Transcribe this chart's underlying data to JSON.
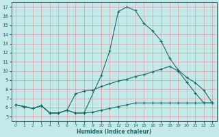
{
  "xlabel": "Humidex (Indice chaleur)",
  "bg_color": "#c5e8e8",
  "grid_color": "#afd4d4",
  "line_color": "#1a6b6b",
  "xlim": [
    -0.5,
    23.5
  ],
  "ylim": [
    4.5,
    17.5
  ],
  "xticks": [
    0,
    1,
    2,
    3,
    4,
    5,
    6,
    7,
    8,
    9,
    10,
    11,
    12,
    13,
    14,
    15,
    16,
    17,
    18,
    19,
    20,
    21,
    22,
    23
  ],
  "yticks": [
    5,
    6,
    7,
    8,
    9,
    10,
    11,
    12,
    13,
    14,
    15,
    16,
    17
  ],
  "line1_x": [
    0,
    1,
    2,
    3,
    4,
    5,
    6,
    7,
    8,
    10,
    11,
    12,
    13,
    14,
    15,
    16,
    17,
    18,
    19,
    20,
    21,
    22,
    23
  ],
  "line1_y": [
    6.3,
    6.1,
    5.9,
    6.2,
    5.4,
    5.4,
    5.7,
    5.4,
    5.4,
    9.5,
    12.2,
    16.5,
    17.0,
    16.6,
    15.2,
    14.4,
    13.3,
    11.4,
    10.1,
    9.3,
    8.7,
    7.9,
    6.5
  ],
  "line2_x": [
    0,
    1,
    2,
    3,
    4,
    5,
    6,
    7,
    8,
    9,
    10,
    11,
    12,
    13,
    14,
    15,
    16,
    17,
    18,
    19,
    20,
    21,
    22,
    23
  ],
  "line2_y": [
    6.3,
    6.1,
    5.9,
    6.2,
    5.4,
    5.4,
    5.7,
    7.5,
    7.8,
    7.9,
    8.3,
    8.6,
    8.9,
    9.1,
    9.4,
    9.6,
    9.9,
    10.2,
    10.5,
    10.0,
    8.8,
    7.6,
    6.5,
    6.5
  ],
  "line3_x": [
    0,
    1,
    2,
    3,
    4,
    5,
    6,
    7,
    8,
    9,
    10,
    11,
    12,
    13,
    14,
    15,
    16,
    17,
    18,
    19,
    20,
    21,
    22,
    23
  ],
  "line3_y": [
    6.3,
    6.1,
    5.9,
    6.2,
    5.4,
    5.4,
    5.7,
    5.4,
    5.4,
    5.5,
    5.7,
    5.9,
    6.1,
    6.3,
    6.5,
    6.5,
    6.5,
    6.5,
    6.5,
    6.5,
    6.5,
    6.5,
    6.5,
    6.5
  ]
}
